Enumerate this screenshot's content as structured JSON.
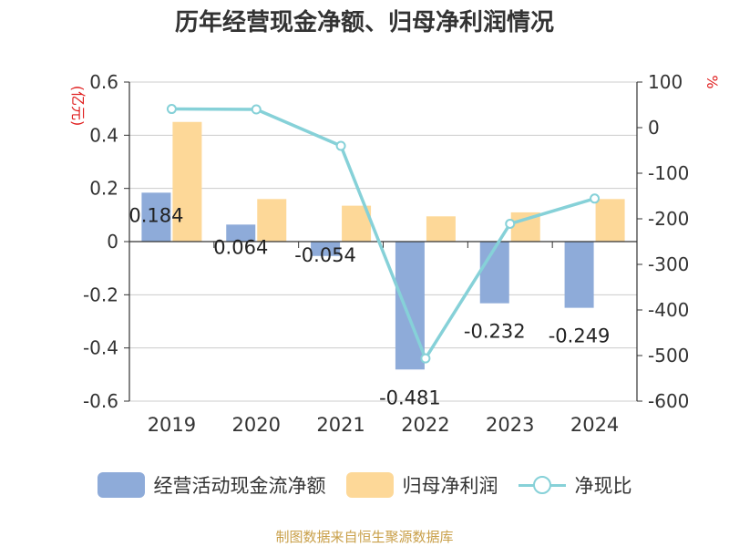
{
  "chart_data": {
    "type": "bar",
    "title": "历年经营现金净额、归母净利润情况",
    "source": "制图数据来自恒生聚源数据库",
    "categories": [
      "2019",
      "2020",
      "2021",
      "2022",
      "2023",
      "2024"
    ],
    "y_left": {
      "label": "(亿元)",
      "min": -0.6,
      "max": 0.6,
      "ticks": [
        "0.6",
        "0.4",
        "0.2",
        "0",
        "-0.2",
        "-0.4",
        "-0.6"
      ]
    },
    "y_right": {
      "label": "%",
      "min": -600,
      "max": 100,
      "ticks": [
        "100",
        "0",
        "-100",
        "-200",
        "-300",
        "-400",
        "-500",
        "-600"
      ]
    },
    "grid": true,
    "legend_position": "bottom",
    "series": [
      {
        "name": "经营活动现金流净额",
        "kind": "bar",
        "axis": "left",
        "color": "#8eabd9",
        "values": [
          0.184,
          0.064,
          -0.054,
          -0.481,
          -0.232,
          -0.249
        ],
        "labels": [
          "0.184",
          "0.064",
          "-0.054",
          "-0.481",
          "-0.232",
          "-0.249"
        ]
      },
      {
        "name": "归母净利润",
        "kind": "bar",
        "axis": "left",
        "color": "#fdd898",
        "values": [
          0.45,
          0.16,
          0.135,
          0.095,
          0.11,
          0.16
        ]
      },
      {
        "name": "净现比",
        "kind": "line",
        "axis": "right",
        "color": "#86d1d8",
        "values": [
          40.9,
          40.0,
          -40.0,
          -506.3,
          -210.9,
          -155.6
        ]
      }
    ]
  }
}
